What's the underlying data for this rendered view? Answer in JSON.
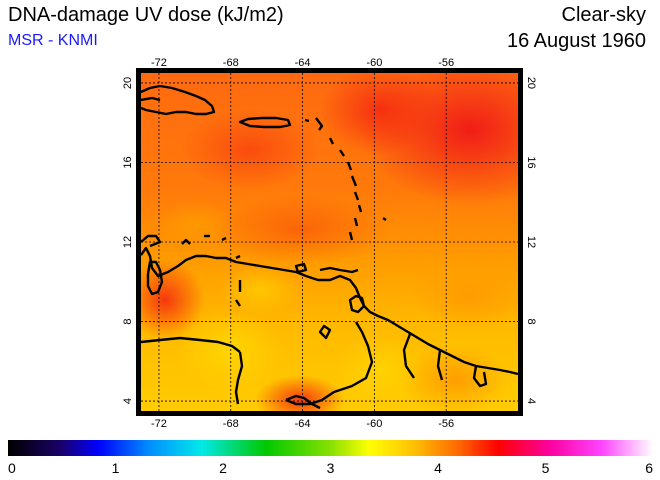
{
  "header": {
    "title": "DNA-damage UV dose (kJ/m2)",
    "source": "MSR - KNMI",
    "condition": "Clear-sky",
    "date": "16 August 1960"
  },
  "map": {
    "lon_range": [
      -73,
      -52
    ],
    "lat_range": [
      3.5,
      20.5
    ],
    "lon_ticks": [
      "-72",
      "-68",
      "-64",
      "-60",
      "-56"
    ],
    "lat_ticks": [
      "4",
      "8",
      "12",
      "16",
      "20"
    ],
    "gridlines": true
  },
  "colorbar": {
    "min": 0,
    "max": 6,
    "labels": [
      "0",
      "1",
      "2",
      "3",
      "4",
      "5",
      "6"
    ]
  }
}
